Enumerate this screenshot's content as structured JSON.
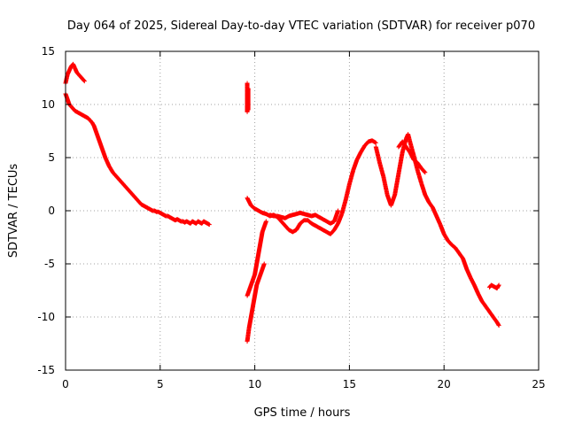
{
  "chart_data": {
    "type": "scatter",
    "title": "Day 064 of 2025, Sidereal Day-to-day VTEC variation (SDTVAR) for receiver p070",
    "xlabel": "GPS time / hours",
    "ylabel": "SDTVAR / TECUs",
    "xlim": [
      0,
      25
    ],
    "ylim": [
      -15,
      15
    ],
    "xticks": [
      0,
      5,
      10,
      15,
      20,
      25
    ],
    "yticks": [
      -15,
      -10,
      -5,
      0,
      5,
      10,
      15
    ],
    "grid": true,
    "marker": "+",
    "color": "#ff0000",
    "series": [
      {
        "name": "upper-early",
        "x": [
          0.0,
          0.1,
          0.2,
          0.3,
          0.4,
          0.5,
          0.6,
          0.7,
          0.8,
          0.9,
          1.0
        ],
        "y": [
          12.0,
          12.8,
          13.2,
          13.6,
          13.8,
          13.4,
          13.0,
          12.8,
          12.6,
          12.4,
          12.2
        ]
      },
      {
        "name": "morning-decline",
        "x": [
          0.0,
          0.1,
          0.2,
          0.3,
          0.4,
          0.5,
          0.6,
          0.7,
          0.8,
          0.9,
          1.0,
          1.1,
          1.2,
          1.3,
          1.4,
          1.5,
          1.6,
          1.7,
          1.8,
          1.9,
          2.0,
          2.1,
          2.2,
          2.3,
          2.4,
          2.5,
          2.6,
          2.7,
          2.8,
          2.9,
          3.0,
          3.1,
          3.2,
          3.3,
          3.4,
          3.5,
          3.6,
          3.7,
          3.8,
          3.9,
          4.0,
          4.1,
          4.2,
          4.3,
          4.4,
          4.5,
          4.6,
          4.7,
          4.8,
          4.9,
          5.0,
          5.1,
          5.2,
          5.3,
          5.4,
          5.5,
          5.6,
          5.7,
          5.8,
          5.9,
          6.0,
          6.1,
          6.2,
          6.3,
          6.4,
          6.5,
          6.6,
          6.7,
          6.8,
          6.9,
          7.0,
          7.1,
          7.2,
          7.3,
          7.4,
          7.5,
          7.6
        ],
        "y": [
          11.0,
          10.5,
          10.0,
          9.8,
          9.6,
          9.4,
          9.3,
          9.2,
          9.1,
          9.0,
          8.9,
          8.8,
          8.7,
          8.5,
          8.3,
          8.0,
          7.5,
          7.0,
          6.5,
          6.0,
          5.5,
          5.0,
          4.6,
          4.2,
          3.9,
          3.6,
          3.4,
          3.2,
          3.0,
          2.8,
          2.6,
          2.4,
          2.2,
          2.0,
          1.8,
          1.6,
          1.4,
          1.2,
          1.0,
          0.8,
          0.6,
          0.5,
          0.4,
          0.3,
          0.2,
          0.1,
          0.0,
          0.0,
          -0.1,
          -0.1,
          -0.2,
          -0.3,
          -0.4,
          -0.5,
          -0.5,
          -0.6,
          -0.7,
          -0.8,
          -0.9,
          -0.8,
          -0.9,
          -1.0,
          -1.0,
          -1.1,
          -1.0,
          -1.1,
          -1.2,
          -1.0,
          -1.1,
          -1.2,
          -1.0,
          -1.1,
          -1.2,
          -1.0,
          -1.1,
          -1.2,
          -1.3
        ]
      },
      {
        "name": "isolated-cluster",
        "x": [
          9.6,
          9.6,
          9.6,
          9.6,
          9.6,
          9.6,
          9.6,
          9.6,
          9.6,
          9.6,
          9.65,
          9.65,
          9.65,
          9.65,
          9.65
        ],
        "y": [
          12.0,
          11.7,
          11.4,
          11.1,
          10.8,
          10.5,
          10.2,
          9.9,
          9.6,
          9.3,
          11.5,
          11.0,
          10.5,
          10.0,
          9.5
        ]
      },
      {
        "name": "afternoon-rise",
        "x": [
          9.6,
          9.7,
          9.8,
          9.9,
          10.0,
          10.1,
          10.2,
          10.3,
          10.4,
          10.5
        ],
        "y": [
          -12.3,
          -11.0,
          -10.0,
          -9.0,
          -8.0,
          -7.0,
          -6.5,
          -6.0,
          -5.5,
          -5.0
        ]
      },
      {
        "name": "afternoon-lower-branch",
        "x": [
          9.6,
          9.7,
          9.8,
          9.9,
          10.0,
          10.1,
          10.2,
          10.3,
          10.4,
          10.5,
          10.6
        ],
        "y": [
          -8.0,
          -7.5,
          -7.0,
          -6.5,
          -6.0,
          -5.0,
          -4.0,
          -3.0,
          -2.0,
          -1.5,
          -1.0
        ]
      },
      {
        "name": "midday-band",
        "x": [
          9.6,
          9.8,
          10.0,
          10.2,
          10.4,
          10.6,
          10.8,
          11.0,
          11.2,
          11.4,
          11.6,
          11.8,
          12.0,
          12.2,
          12.4,
          12.6,
          12.8,
          13.0,
          13.2,
          13.4,
          13.6,
          13.8,
          14.0,
          14.2,
          14.4,
          14.6,
          14.8,
          15.0,
          15.2,
          15.4,
          15.6,
          15.8,
          16.0,
          16.2,
          16.4
        ],
        "y": [
          1.2,
          0.5,
          0.2,
          0.0,
          -0.2,
          -0.3,
          -0.5,
          -0.4,
          -0.6,
          -1.0,
          -1.4,
          -1.8,
          -2.0,
          -1.8,
          -1.2,
          -0.9,
          -0.9,
          -1.2,
          -1.4,
          -1.6,
          -1.8,
          -2.0,
          -2.2,
          -1.8,
          -1.2,
          -0.3,
          1.0,
          2.5,
          3.8,
          4.8,
          5.5,
          6.1,
          6.5,
          6.6,
          6.4
        ]
      },
      {
        "name": "midday-upper-band",
        "x": [
          10.8,
          11.0,
          11.2,
          11.4,
          11.6,
          11.8,
          12.0,
          12.2,
          12.4,
          12.6,
          12.8,
          13.0,
          13.2,
          13.4,
          13.6,
          13.8,
          14.0,
          14.2,
          14.4
        ],
        "y": [
          -0.4,
          -0.5,
          -0.5,
          -0.6,
          -0.7,
          -0.5,
          -0.4,
          -0.3,
          -0.2,
          -0.3,
          -0.4,
          -0.5,
          -0.4,
          -0.6,
          -0.8,
          -1.0,
          -1.2,
          -1.0,
          0.0
        ]
      },
      {
        "name": "evening-peaks",
        "x": [
          16.4,
          16.6,
          16.8,
          17.0,
          17.2,
          17.4,
          17.6,
          17.8,
          18.0,
          18.1,
          18.2,
          18.4,
          18.6,
          18.8,
          19.0,
          19.2,
          19.4,
          19.6,
          19.8,
          20.0,
          20.2,
          20.4,
          20.6,
          20.8,
          21.0,
          21.2,
          21.4,
          21.6,
          21.8,
          22.0,
          22.2,
          22.4,
          22.6,
          22.8,
          22.9
        ],
        "y": [
          6.0,
          4.5,
          3.2,
          1.5,
          0.5,
          1.5,
          3.5,
          5.5,
          6.8,
          7.2,
          6.5,
          5.2,
          3.8,
          2.6,
          1.5,
          0.8,
          0.3,
          -0.5,
          -1.3,
          -2.2,
          -2.8,
          -3.2,
          -3.5,
          -4.0,
          -4.5,
          -5.5,
          -6.3,
          -7.0,
          -7.8,
          -8.5,
          -9.0,
          -9.5,
          -10.0,
          -10.5,
          -10.8
        ]
      },
      {
        "name": "evening-upper-branch",
        "x": [
          17.6,
          17.8,
          18.0,
          18.2,
          18.4,
          18.6,
          18.8,
          19.0
        ],
        "y": [
          6.0,
          6.5,
          6.0,
          5.5,
          4.8,
          4.5,
          4.0,
          3.6
        ]
      },
      {
        "name": "late-tail",
        "x": [
          22.4,
          22.5,
          22.6,
          22.7,
          22.8,
          22.9
        ],
        "y": [
          -7.2,
          -7.0,
          -7.1,
          -7.2,
          -7.3,
          -7.0
        ]
      }
    ]
  }
}
